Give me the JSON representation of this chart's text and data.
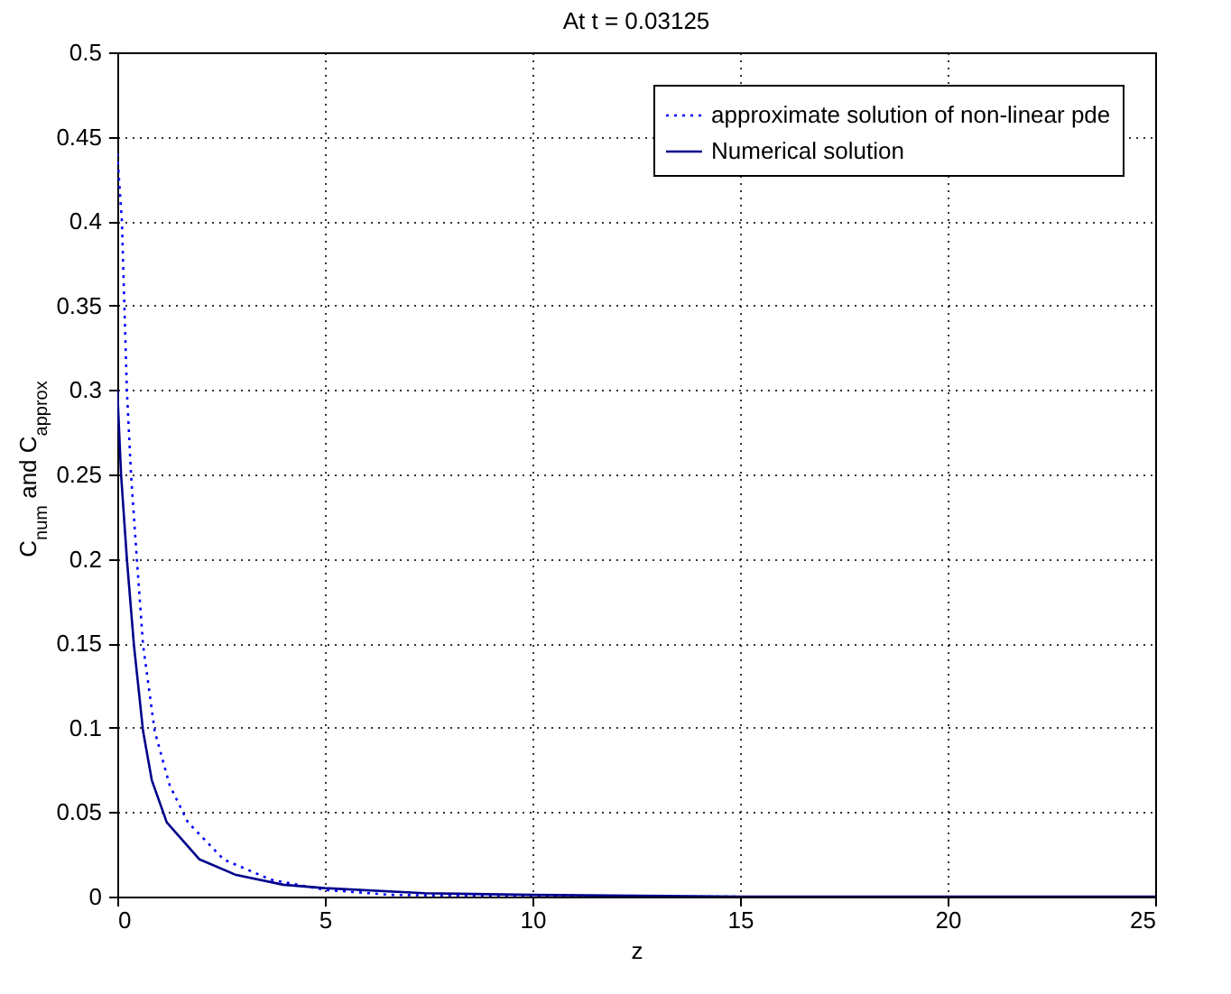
{
  "chart_data": {
    "type": "line",
    "title": "At t = 0.03125",
    "xlabel": "z",
    "ylabel": "C$_{num}$ and C$_{approx}$",
    "xlim": [
      0,
      25
    ],
    "xticks": [
      0,
      5,
      10,
      15,
      20,
      25
    ],
    "ylim": [
      0,
      0.5
    ],
    "yticks": [
      0,
      0.05,
      0.1,
      0.15,
      0.2,
      0.25,
      0.3,
      0.35,
      0.4,
      0.45,
      0.5
    ],
    "grid": true,
    "legend": "top right",
    "series": [
      {
        "name": "approximate solution of non-linear pde",
        "color": "#0000ff",
        "line_style": "dotted",
        "x": [
          0,
          0.11,
          0.23,
          0.33,
          0.47,
          0.62,
          0.9,
          1.26,
          1.7,
          2.56,
          3.7,
          5,
          6.6,
          10,
          15
        ],
        "values": [
          0.44,
          0.4,
          0.3,
          0.25,
          0.2,
          0.149,
          0.098,
          0.066,
          0.044,
          0.022,
          0.01,
          0.004,
          0.001,
          0,
          0
        ]
      },
      {
        "name": "Numerical solution",
        "color": "#00008b",
        "line_style": "solid",
        "x": [
          0,
          0.09,
          0.23,
          0.4,
          0.62,
          0.83,
          1.19,
          1.98,
          2.84,
          4,
          5,
          7.4,
          10,
          15,
          20,
          25
        ],
        "values": [
          0.3,
          0.25,
          0.2,
          0.149,
          0.098,
          0.069,
          0.044,
          0.022,
          0.013,
          0.007,
          0.005,
          0.002,
          0.001,
          0,
          0,
          0
        ]
      }
    ]
  }
}
